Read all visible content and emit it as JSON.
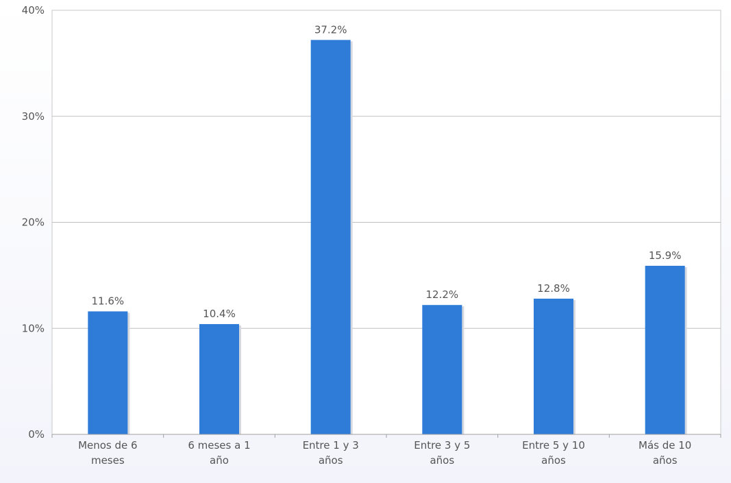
{
  "chart_data": {
    "type": "bar",
    "categories": [
      [
        "Menos de 6",
        "meses"
      ],
      [
        "6 meses a 1",
        "año"
      ],
      [
        "Entre 1 y 3",
        "años"
      ],
      [
        "Entre 3 y 5",
        "años"
      ],
      [
        "Entre 5 y 10",
        "años"
      ],
      [
        "Más de 10",
        "años"
      ]
    ],
    "values": [
      11.6,
      10.4,
      37.2,
      12.2,
      12.8,
      15.9
    ],
    "data_labels": [
      "11.6%",
      "10.4%",
      "37.2%",
      "12.2%",
      "12.8%",
      "15.9%"
    ],
    "yticks": [
      0,
      10,
      20,
      30,
      40
    ],
    "ytick_labels": [
      "0%",
      "10%",
      "20%",
      "30%",
      "40%"
    ],
    "ylim": [
      0,
      40
    ],
    "grid": true,
    "bar_color": "#2e7bd8"
  }
}
